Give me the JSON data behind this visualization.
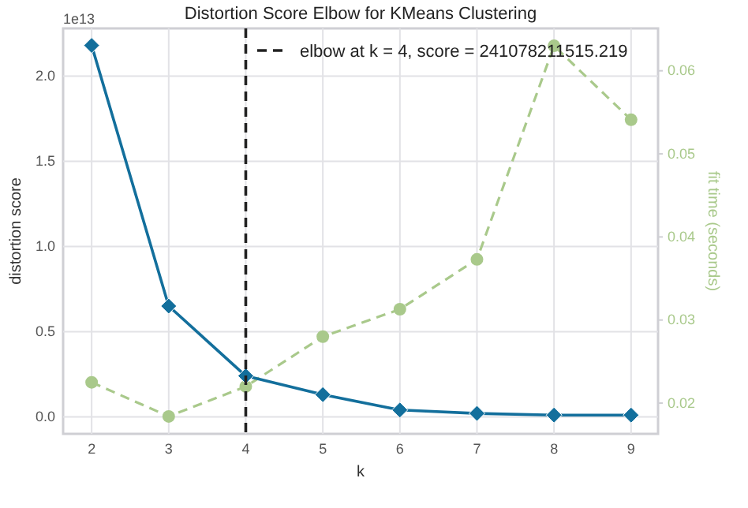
{
  "chart_data": {
    "type": "line",
    "title": "Distortion Score Elbow for KMeans Clustering",
    "xlabel": "k",
    "ylabel": "distortion score",
    "y2label": "fit time (seconds)",
    "x": [
      2,
      3,
      4,
      5,
      6,
      7,
      8,
      9
    ],
    "xlim": [
      1.63,
      9.35
    ],
    "xticks": [
      2,
      3,
      4,
      5,
      6,
      7,
      8,
      9
    ],
    "ylim": [
      -0.1,
      2.28
    ],
    "yticks": [
      {
        "value": 0,
        "label": "0.0"
      },
      0.5,
      {
        "value": 1,
        "label": "1.0"
      },
      1.5,
      {
        "value": 2,
        "label": "2.0"
      }
    ],
    "y2lim": [
      0.0163,
      0.0651
    ],
    "y2ticks": [
      0.02,
      0.03,
      0.04,
      0.05,
      0.06
    ],
    "series": [
      {
        "color": "#136f9c",
        "marker": "diamond",
        "line_style": "solid",
        "values": [
          2.18,
          0.65,
          0.24,
          0.13,
          0.04,
          0.02,
          0.01,
          0.01
        ]
      },
      {
        "color": "#a9c98b",
        "marker": "circle",
        "line_style": "dashed",
        "axis": "y2",
        "values": [
          0.0225,
          0.0184,
          0.022,
          0.028,
          0.0313,
          0.0373,
          0.063,
          0.0541
        ]
      }
    ],
    "ref_lines": [
      {
        "axis": "x",
        "value": 4,
        "label": "elbow at k = 4, score = 241078211515.219",
        "color": "#222222",
        "line_style": "dashed"
      }
    ],
    "annotations": [
      "1e13"
    ],
    "grid": true,
    "legend": "top right"
  }
}
